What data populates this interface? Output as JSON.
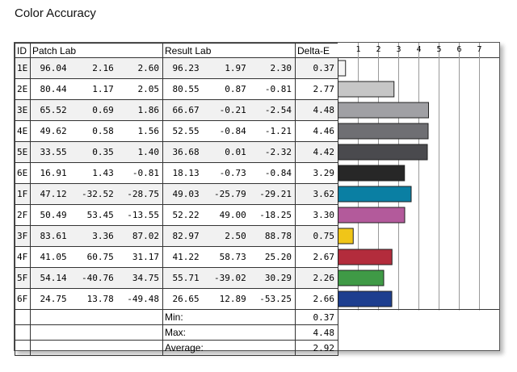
{
  "title": "Color Accuracy",
  "headers": {
    "id": "ID",
    "patch": "Patch Lab",
    "result": "Result Lab",
    "delta": "Delta-E"
  },
  "rows": [
    {
      "id": "1E",
      "patch": [
        "96.04",
        "2.16",
        "2.60"
      ],
      "result": [
        "96.23",
        "1.97",
        "2.30"
      ],
      "delta": "0.37"
    },
    {
      "id": "2E",
      "patch": [
        "80.44",
        "1.17",
        "2.05"
      ],
      "result": [
        "80.55",
        "0.87",
        "-0.81"
      ],
      "delta": "2.77"
    },
    {
      "id": "3E",
      "patch": [
        "65.52",
        "0.69",
        "1.86"
      ],
      "result": [
        "66.67",
        "-0.21",
        "-2.54"
      ],
      "delta": "4.48"
    },
    {
      "id": "4E",
      "patch": [
        "49.62",
        "0.58",
        "1.56"
      ],
      "result": [
        "52.55",
        "-0.84",
        "-1.21"
      ],
      "delta": "4.46"
    },
    {
      "id": "5E",
      "patch": [
        "33.55",
        "0.35",
        "1.40"
      ],
      "result": [
        "36.68",
        "0.01",
        "-2.32"
      ],
      "delta": "4.42"
    },
    {
      "id": "6E",
      "patch": [
        "16.91",
        "1.43",
        "-0.81"
      ],
      "result": [
        "18.13",
        "-0.73",
        "-0.84"
      ],
      "delta": "3.29"
    },
    {
      "id": "1F",
      "patch": [
        "47.12",
        "-32.52",
        "-28.75"
      ],
      "result": [
        "49.03",
        "-25.79",
        "-29.21"
      ],
      "delta": "3.62"
    },
    {
      "id": "2F",
      "patch": [
        "50.49",
        "53.45",
        "-13.55"
      ],
      "result": [
        "52.22",
        "49.00",
        "-18.25"
      ],
      "delta": "3.30"
    },
    {
      "id": "3F",
      "patch": [
        "83.61",
        "3.36",
        "87.02"
      ],
      "result": [
        "82.97",
        "2.50",
        "88.78"
      ],
      "delta": "0.75"
    },
    {
      "id": "4F",
      "patch": [
        "41.05",
        "60.75",
        "31.17"
      ],
      "result": [
        "41.22",
        "58.73",
        "25.20"
      ],
      "delta": "2.67"
    },
    {
      "id": "5F",
      "patch": [
        "54.14",
        "-40.76",
        "34.75"
      ],
      "result": [
        "55.71",
        "-39.02",
        "30.29"
      ],
      "delta": "2.26"
    },
    {
      "id": "6F",
      "patch": [
        "24.75",
        "13.78",
        "-49.48"
      ],
      "result": [
        "26.65",
        "12.89",
        "-53.25"
      ],
      "delta": "2.66"
    }
  ],
  "summary": [
    {
      "label": "Min:",
      "value": "0.37"
    },
    {
      "label": "Max:",
      "value": "4.48"
    },
    {
      "label": "Average:",
      "value": "2.92"
    }
  ],
  "chart_data": {
    "type": "bar",
    "orientation": "horizontal",
    "categories": [
      "1E",
      "2E",
      "3E",
      "4E",
      "5E",
      "6E",
      "1F",
      "2F",
      "3F",
      "4F",
      "5F",
      "6F"
    ],
    "values": [
      0.37,
      2.77,
      4.48,
      4.46,
      4.42,
      3.29,
      3.62,
      3.3,
      0.75,
      2.67,
      2.26,
      2.66
    ],
    "colors": [
      "#f5f5f5",
      "#c6c6c6",
      "#a0a0a4",
      "#6f6f73",
      "#4a4a4e",
      "#272727",
      "#0a7fa3",
      "#b35a9b",
      "#f0c518",
      "#b32c3c",
      "#3f9a46",
      "#1d3e8f"
    ],
    "ticks": [
      "1",
      "2",
      "3",
      "4",
      "5",
      "6",
      "7"
    ],
    "xlim": [
      0,
      8
    ],
    "grid": true
  }
}
